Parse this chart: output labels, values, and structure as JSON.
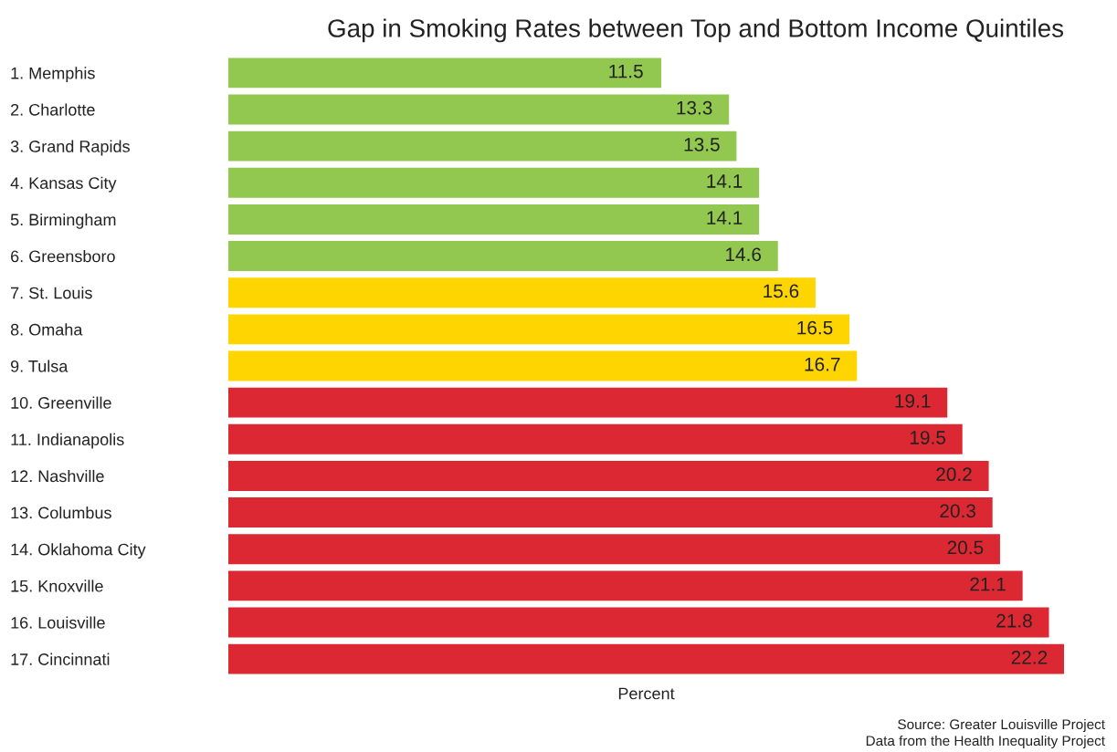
{
  "chart_data": {
    "type": "bar",
    "orientation": "horizontal",
    "title": "Gap in Smoking Rates between Top and Bottom Income Quintiles",
    "xlabel": "Percent",
    "categories": [
      "1. Memphis",
      "2. Charlotte",
      "3. Grand Rapids",
      "4. Kansas City",
      "5. Birmingham",
      "6. Greensboro",
      "7. St. Louis",
      "8. Omaha",
      "9. Tulsa",
      "10. Greenville",
      "11. Indianapolis",
      "12. Nashville",
      "13. Columbus",
      "14. Oklahoma City",
      "15. Knoxville",
      "16. Louisville",
      "17. Cincinnati"
    ],
    "values": [
      11.5,
      13.3,
      13.5,
      14.1,
      14.1,
      14.6,
      15.6,
      16.5,
      16.7,
      19.1,
      19.5,
      20.2,
      20.3,
      20.5,
      21.1,
      21.8,
      22.2
    ],
    "colors": [
      "#92c84f",
      "#92c84f",
      "#92c84f",
      "#92c84f",
      "#92c84f",
      "#92c84f",
      "#ffd500",
      "#ffd500",
      "#ffd500",
      "#dc2833",
      "#dc2833",
      "#dc2833",
      "#dc2833",
      "#dc2833",
      "#dc2833",
      "#dc2833",
      "#dc2833"
    ],
    "data_labels": true,
    "grid": false,
    "legend": false,
    "annotations": [
      "Source: Greater Louisville Project",
      "Data from the Health Inequality Project"
    ]
  }
}
